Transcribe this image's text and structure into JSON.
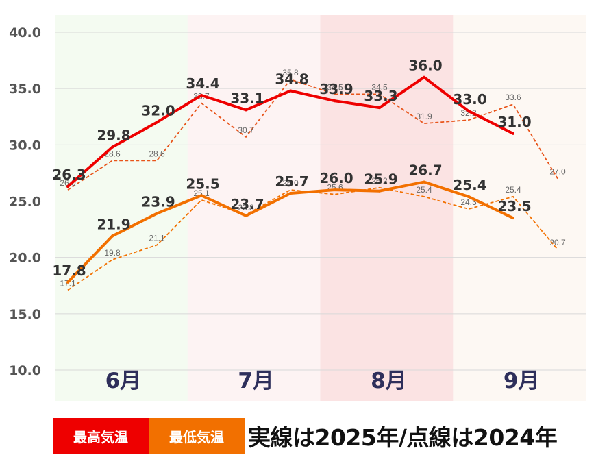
{
  "chart_data": {
    "type": "line",
    "ylim": [
      10,
      40
    ],
    "yticks": [
      "10.0",
      "15.0",
      "20.0",
      "25.0",
      "30.0",
      "35.0",
      "40.0"
    ],
    "months": [
      {
        "label": "6月",
        "color": "#f4fbf1"
      },
      {
        "label": "7月",
        "color": "#fdf3f3"
      },
      {
        "label": "8月",
        "color": "#fbe3e3"
      },
      {
        "label": "9月",
        "color": "#fdf8f3"
      }
    ],
    "series": [
      {
        "id": "high_2025",
        "style": "solid",
        "color": "#ee0000",
        "values": [
          26.3,
          29.8,
          32.0,
          34.4,
          33.1,
          34.8,
          33.9,
          33.3,
          36.0,
          33.0,
          31.0
        ]
      },
      {
        "id": "high_2024",
        "style": "dashed",
        "color": "#e8541a",
        "values": [
          26.0,
          28.6,
          28.6,
          33.7,
          30.7,
          35.8,
          34.5,
          34.5,
          31.9,
          32.2,
          33.6,
          27.0
        ]
      },
      {
        "id": "low_2025",
        "style": "solid",
        "color": "#f27000",
        "values": [
          17.8,
          21.9,
          23.9,
          25.5,
          23.7,
          25.7,
          26.0,
          25.9,
          26.7,
          25.4,
          23.5
        ]
      },
      {
        "id": "low_2024",
        "style": "dashed",
        "color": "#f27000",
        "values": [
          17.1,
          19.8,
          21.1,
          25.1,
          23.8,
          26.0,
          25.6,
          26.2,
          25.4,
          24.3,
          25.4,
          20.7
        ]
      }
    ]
  },
  "legend": {
    "high": "最高気温",
    "low": "最低気温",
    "note": "実線は2025年/点線は2024年"
  }
}
